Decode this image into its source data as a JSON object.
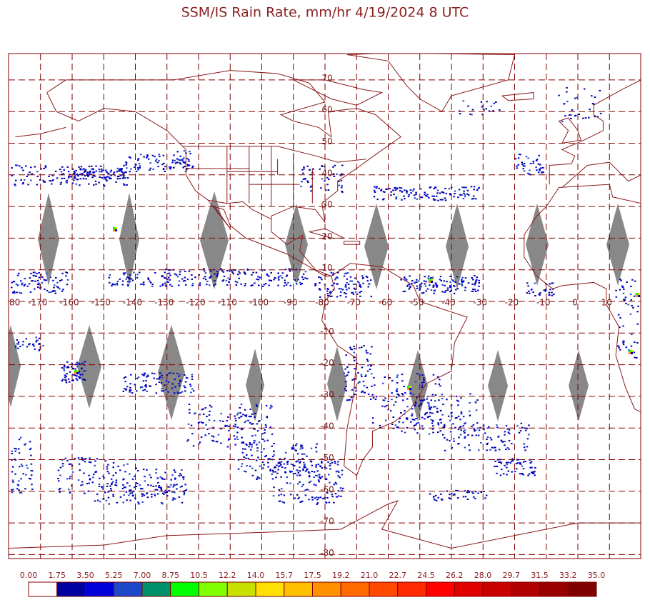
{
  "title": "SSM/IS Rain Rate, mm/hr 4/19/2024 8 UTC",
  "map": {
    "longitude_labels": [
      "80",
      "-170",
      "-160",
      "-150",
      "-140",
      "-130",
      "-120",
      "-110",
      "-100",
      "-90",
      "-80",
      "-70",
      "-60",
      "-50",
      "-40",
      "-30",
      "-20",
      "-10",
      "0",
      "10"
    ],
    "latitude_labels": [
      "70",
      "60",
      "50",
      "40",
      "30",
      "20",
      "10",
      "-10",
      "-20",
      "-30",
      "-40",
      "-50",
      "-60",
      "-70",
      "-80"
    ]
  },
  "colorbar": {
    "labels": [
      "0.00",
      "1.75",
      "3.50",
      "5.25",
      "7.00",
      "8.75",
      "10.5",
      "12.2",
      "14.0",
      "15.7",
      "17.5",
      "19.2",
      "21.0",
      "22.7",
      "24.5",
      "26.2",
      "28.0",
      "29.7",
      "31.5",
      "33.2",
      "35.0"
    ],
    "colors": [
      "#ffffff",
      "#0000a0",
      "#0000d8",
      "#1f48c8",
      "#00906a",
      "#00ff00",
      "#80ff00",
      "#c8e000",
      "#ffe000",
      "#ffc000",
      "#ff9000",
      "#ff6a00",
      "#ff4a00",
      "#ff2a00",
      "#ff0000",
      "#e00000",
      "#c80000",
      "#b00000",
      "#980000",
      "#800000"
    ]
  }
}
